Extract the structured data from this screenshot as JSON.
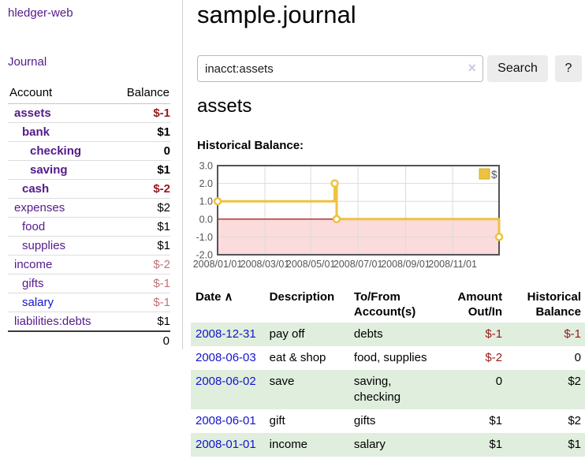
{
  "app": {
    "title": "hledger-web",
    "nav_journal": "Journal"
  },
  "colors": {
    "link_purple": "#551a8b",
    "link_blue": "#1414cc",
    "negative_strong": "#96181c",
    "negative_muted": "#bf7375",
    "row_green": "#e0eede",
    "series_gold": "#edc240",
    "negative_fill_pink": "#fbdbdb",
    "zero_line_red": "#aa2222",
    "grid_gray": "#dcdcdc",
    "axis_text_gray": "#545454",
    "plot_border": "#545454"
  },
  "sidebar": {
    "header": {
      "account": "Account",
      "balance": "Balance"
    },
    "accounts": [
      {
        "name": "assets",
        "depth": 1,
        "bold": true,
        "balance": "$-1",
        "neg": "strong",
        "link": "purple"
      },
      {
        "name": "bank",
        "depth": 2,
        "bold": true,
        "balance": "$1",
        "neg": "none",
        "link": "purple"
      },
      {
        "name": "checking",
        "depth": 3,
        "bold": true,
        "balance": "0",
        "neg": "none",
        "link": "purple"
      },
      {
        "name": "saving",
        "depth": 3,
        "bold": true,
        "balance": "$1",
        "neg": "none",
        "link": "purple"
      },
      {
        "name": "cash",
        "depth": 2,
        "bold": true,
        "balance": "$-2",
        "neg": "strong",
        "link": "purple"
      },
      {
        "name": "expenses",
        "depth": 1,
        "bold": false,
        "balance": "$2",
        "neg": "none",
        "link": "purple"
      },
      {
        "name": "food",
        "depth": 2,
        "bold": false,
        "balance": "$1",
        "neg": "none",
        "link": "purple"
      },
      {
        "name": "supplies",
        "depth": 2,
        "bold": false,
        "balance": "$1",
        "neg": "none",
        "link": "purple"
      },
      {
        "name": "income",
        "depth": 1,
        "bold": false,
        "balance": "$-2",
        "neg": "muted",
        "link": "purple"
      },
      {
        "name": "gifts",
        "depth": 2,
        "bold": false,
        "balance": "$-1",
        "neg": "muted",
        "link": "purple"
      },
      {
        "name": "salary",
        "depth": 2,
        "bold": false,
        "balance": "$-1",
        "neg": "muted",
        "link": "blue"
      },
      {
        "name": "liabilities:debts",
        "depth": 1,
        "bold": false,
        "balance": "$1",
        "neg": "none",
        "link": "purple"
      }
    ],
    "total": "0"
  },
  "header": {
    "title": "sample.journal"
  },
  "search": {
    "value": "inacct:assets",
    "clear_icon": "×",
    "button": "Search",
    "help_button": "?"
  },
  "account_page": {
    "title": "assets",
    "chart_label": "Historical Balance:"
  },
  "chart_data": {
    "type": "line",
    "style": "step",
    "title": "Historical Balance:",
    "ylim": [
      -2,
      3
    ],
    "yticks": [
      {
        "label": "3.0",
        "v": 3
      },
      {
        "label": "2.0",
        "v": 2
      },
      {
        "label": "1.0",
        "v": 1
      },
      {
        "label": "0.0",
        "v": 0
      },
      {
        "label": "-1.0",
        "v": -1
      },
      {
        "label": "-2.0",
        "v": -2
      }
    ],
    "xticks": [
      {
        "label": "2008/01/01",
        "f": 0.0
      },
      {
        "label": "2008/03/01",
        "f": 0.168
      },
      {
        "label": "2008/05/01",
        "f": 0.331
      },
      {
        "label": "2008/07/01",
        "f": 0.499
      },
      {
        "label": "2008/09/01",
        "f": 0.668
      },
      {
        "label": "2008/11/01",
        "f": 0.835
      }
    ],
    "series": [
      {
        "name": "$",
        "points": [
          {
            "x": "2008-01-01",
            "y": 1,
            "f": 0.0
          },
          {
            "x": "2008-06-01",
            "y": 2,
            "f": 0.416
          },
          {
            "x": "2008-06-03",
            "y": 0,
            "f": 0.423
          },
          {
            "x": "2008-12-31",
            "y": -1,
            "f": 1.0
          }
        ]
      }
    ],
    "legend": {
      "label": "$",
      "position": "top-right"
    },
    "grid": true
  },
  "register": {
    "columns": [
      {
        "label": "Date",
        "align": "left",
        "width": 100,
        "sorted": "asc"
      },
      {
        "label": "Description",
        "align": "left",
        "width": 103
      },
      {
        "label": "To/From Account(s)",
        "align": "left",
        "width": 110
      },
      {
        "label": "Amount Out/In",
        "align": "right",
        "width": 88
      },
      {
        "label": "Historical Balance",
        "align": "right",
        "width": 99
      }
    ],
    "rows": [
      {
        "date": "2008-12-31",
        "description": "pay off",
        "accounts": "debts",
        "amount": "$-1",
        "amount_neg": true,
        "balance": "$-1",
        "balance_neg": true,
        "stripe": true
      },
      {
        "date": "2008-06-03",
        "description": "eat & shop",
        "accounts": "food, supplies",
        "amount": "$-2",
        "amount_neg": true,
        "balance": "0",
        "balance_neg": false,
        "stripe": false
      },
      {
        "date": "2008-06-02",
        "description": "save",
        "accounts": "saving, checking",
        "amount": "0",
        "amount_neg": false,
        "balance": "$2",
        "balance_neg": false,
        "stripe": true
      },
      {
        "date": "2008-06-01",
        "description": "gift",
        "accounts": "gifts",
        "amount": "$1",
        "amount_neg": false,
        "balance": "$2",
        "balance_neg": false,
        "stripe": false
      },
      {
        "date": "2008-01-01",
        "description": "income",
        "accounts": "salary",
        "amount": "$1",
        "amount_neg": false,
        "balance": "$1",
        "balance_neg": false,
        "stripe": true
      }
    ],
    "sort_icon": "∧"
  }
}
